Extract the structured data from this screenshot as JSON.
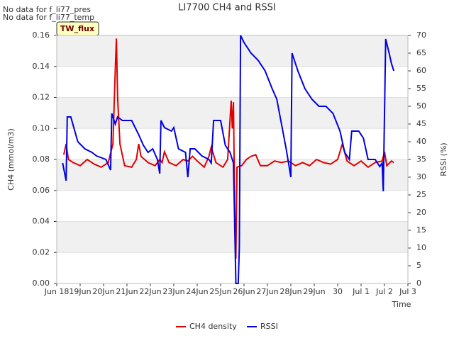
{
  "chart_data": {
    "type": "line",
    "title": "LI7700 CH4 and RSSI",
    "annotations": [
      "No data for f_li77_pres",
      "No data for f_li77_temp"
    ],
    "badge": "TW_flux",
    "x_label": "Time",
    "y_label": "CH4 (mmol/m3)",
    "y2_label": "RSSI (%)",
    "xlim": [
      0,
      15
    ],
    "xticks": [
      {
        "value": 0,
        "label": "Jun 18"
      },
      {
        "value": 1,
        "label": "19Jun"
      },
      {
        "value": 2,
        "label": "20Jun"
      },
      {
        "value": 3,
        "label": "21Jun"
      },
      {
        "value": 4,
        "label": "22Jun"
      },
      {
        "value": 5,
        "label": "23Jun"
      },
      {
        "value": 6,
        "label": "24Jun"
      },
      {
        "value": 7,
        "label": "25Jun"
      },
      {
        "value": 8,
        "label": "26Jun"
      },
      {
        "value": 9,
        "label": "27Jun"
      },
      {
        "value": 10,
        "label": "28Jun"
      },
      {
        "value": 11,
        "label": "29Jun"
      },
      {
        "value": 12,
        "label": "30"
      },
      {
        "value": 13,
        "label": "Jul 1"
      },
      {
        "value": 14,
        "label": "Jul 2"
      },
      {
        "value": 15,
        "label": "Jul 3"
      }
    ],
    "ylim": [
      0,
      0.16
    ],
    "yticks": [
      {
        "value": 0,
        "label": "0.00"
      },
      {
        "value": 0.02,
        "label": "0.02"
      },
      {
        "value": 0.04,
        "label": "0.04"
      },
      {
        "value": 0.06,
        "label": "0.06"
      },
      {
        "value": 0.08,
        "label": "0.08"
      },
      {
        "value": 0.1,
        "label": "0.10"
      },
      {
        "value": 0.12,
        "label": "0.12"
      },
      {
        "value": 0.14,
        "label": "0.14"
      },
      {
        "value": 0.16,
        "label": "0.16"
      }
    ],
    "y2lim": [
      0,
      70
    ],
    "y2ticks": [
      0,
      5,
      10,
      15,
      20,
      25,
      30,
      35,
      40,
      45,
      50,
      55,
      60,
      65,
      70
    ],
    "grid": true,
    "series": [
      {
        "name": "CH4 density",
        "color": "#e00000",
        "x": [
          0.3,
          0.4,
          0.5,
          0.7,
          1.0,
          1.3,
          1.6,
          1.9,
          2.2,
          2.4,
          2.5,
          2.55,
          2.6,
          2.7,
          2.9,
          3.2,
          3.4,
          3.5,
          3.6,
          3.9,
          4.2,
          4.4,
          4.5,
          4.6,
          4.8,
          5.1,
          5.4,
          5.6,
          5.8,
          6.0,
          6.3,
          6.5,
          6.6,
          6.8,
          7.1,
          7.3,
          7.45,
          7.5,
          7.55,
          7.6,
          7.65,
          7.7,
          7.9,
          8.1,
          8.3,
          8.5,
          8.7,
          9.0,
          9.3,
          9.6,
          9.9,
          10.2,
          10.5,
          10.8,
          11.1,
          11.4,
          11.7,
          12.0,
          12.2,
          12.4,
          12.7,
          13.0,
          13.3,
          13.6,
          13.9,
          14.0,
          14.1,
          14.3,
          14.4
        ],
        "values": [
          0.083,
          0.09,
          0.08,
          0.078,
          0.076,
          0.08,
          0.077,
          0.075,
          0.078,
          0.09,
          0.138,
          0.158,
          0.12,
          0.09,
          0.076,
          0.075,
          0.08,
          0.09,
          0.082,
          0.078,
          0.076,
          0.08,
          0.078,
          0.085,
          0.078,
          0.076,
          0.08,
          0.079,
          0.082,
          0.079,
          0.075,
          0.082,
          0.088,
          0.078,
          0.075,
          0.08,
          0.118,
          0.1,
          0.117,
          0.05,
          0.016,
          0.075,
          0.076,
          0.08,
          0.082,
          0.083,
          0.076,
          0.076,
          0.079,
          0.078,
          0.079,
          0.076,
          0.078,
          0.076,
          0.08,
          0.078,
          0.077,
          0.08,
          0.09,
          0.079,
          0.076,
          0.079,
          0.075,
          0.078,
          0.079,
          0.085,
          0.076,
          0.079,
          0.078
        ]
      },
      {
        "name": "RSSI",
        "color": "#0000e0",
        "axis": "y2",
        "x": [
          0.25,
          0.4,
          0.45,
          0.6,
          0.9,
          1.2,
          1.5,
          1.7,
          2.1,
          2.3,
          2.35,
          2.5,
          2.6,
          2.8,
          3.2,
          3.5,
          3.7,
          3.9,
          4.1,
          4.3,
          4.4,
          4.45,
          4.6,
          4.9,
          5.0,
          5.2,
          5.5,
          5.6,
          5.7,
          5.9,
          6.2,
          6.5,
          6.6,
          6.7,
          7.0,
          7.2,
          7.4,
          7.55,
          7.65,
          7.75,
          7.8,
          7.85,
          8.0,
          8.3,
          8.6,
          8.9,
          9.2,
          9.4,
          9.6,
          9.8,
          9.95,
          10.0,
          10.05,
          10.2,
          10.3,
          10.6,
          10.9,
          11.2,
          11.5,
          11.8,
          12.1,
          12.3,
          12.5,
          12.6,
          12.9,
          13.1,
          13.3,
          13.6,
          13.8,
          13.9,
          13.95,
          14.05,
          14.2,
          14.3,
          14.4
        ],
        "values": [
          34,
          29,
          47,
          47,
          40,
          38,
          37,
          36,
          35,
          32,
          48,
          45,
          47,
          46,
          46,
          42,
          39,
          37,
          38,
          35,
          31,
          46,
          44,
          43,
          44,
          38,
          37,
          30,
          38,
          38,
          36,
          35,
          34,
          46,
          46,
          39,
          37,
          34,
          0,
          0,
          10,
          70,
          68,
          65,
          63,
          60,
          55,
          52,
          45,
          38,
          32,
          30,
          65,
          62,
          60,
          55,
          52,
          50,
          50,
          48,
          43,
          37,
          35,
          43,
          43,
          41,
          35,
          35,
          33,
          34,
          26,
          69,
          65,
          62,
          60
        ]
      }
    ],
    "legend": "bottom"
  }
}
